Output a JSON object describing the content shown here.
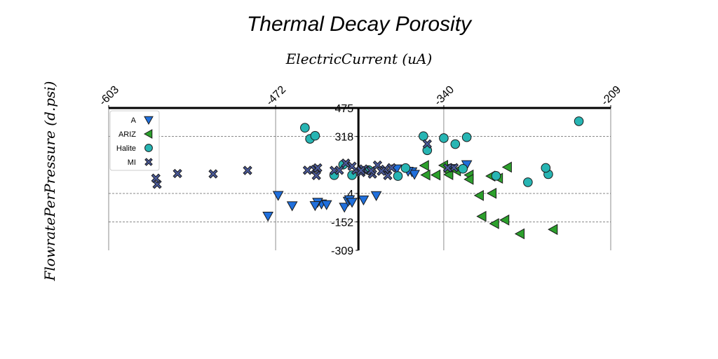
{
  "chart_data": {
    "type": "scatter",
    "title": "Thermal Decay Porosity",
    "xlabel": "ElectricCurrent (uA)",
    "ylabel": "FlowratePerPressure (d.psi)",
    "xlim": [
      -603,
      -209
    ],
    "ylim": [
      -309,
      475
    ],
    "x_ticks": [
      -603,
      -472,
      -340,
      -209
    ],
    "y_ticks": [
      475,
      318,
      4,
      -152,
      -309
    ],
    "legend_position": "top-left",
    "grid": true,
    "series": [
      {
        "name": "A",
        "marker": "triangle-down",
        "color": "#1f6fdc",
        "points": [
          [
            -470,
            -6
          ],
          [
            -418,
            -71
          ],
          [
            -436,
            -53
          ],
          [
            -439,
            -44
          ],
          [
            -441,
            -62
          ],
          [
            -459,
            -63
          ],
          [
            -478,
            -120
          ],
          [
            -432,
            -57
          ],
          [
            -415,
            -38
          ],
          [
            -414,
            -30
          ],
          [
            -412,
            -44
          ],
          [
            -403,
            -31
          ],
          [
            -335,
            142
          ],
          [
            -322,
            163
          ],
          [
            -393,
            -7
          ],
          [
            -365,
            124
          ],
          [
            -363,
            110
          ],
          [
            -368,
            127
          ],
          [
            -377,
            140
          ]
        ]
      },
      {
        "name": "ARIZ",
        "marker": "triangle-left",
        "color": "#2ca02c",
        "points": [
          [
            -354,
            106
          ],
          [
            -355,
            158
          ],
          [
            -340,
            159
          ],
          [
            -336,
            123
          ],
          [
            -320,
            106
          ],
          [
            -336,
            108
          ],
          [
            -303,
            100
          ],
          [
            -330,
            129
          ],
          [
            -346,
            106
          ],
          [
            -320,
            82
          ],
          [
            -290,
            149
          ],
          [
            -297,
            88
          ],
          [
            -302,
            5
          ],
          [
            -292,
            -142
          ],
          [
            -310,
            -122
          ],
          [
            -300,
            -162
          ],
          [
            -254,
            -194
          ],
          [
            -312,
            -7
          ],
          [
            -280,
            -218
          ]
        ]
      },
      {
        "name": "Halite",
        "marker": "circle",
        "color": "#27b5b3",
        "points": [
          [
            -419,
            163
          ],
          [
            -399,
            133
          ],
          [
            -376,
            100
          ],
          [
            -370,
            144
          ],
          [
            -353,
            242
          ],
          [
            -325,
            140
          ],
          [
            -258,
            110
          ],
          [
            -331,
            276
          ],
          [
            -340,
            309
          ],
          [
            -356,
            320
          ],
          [
            -322,
            314
          ],
          [
            -299,
            101
          ],
          [
            -234,
            402
          ],
          [
            -412,
            105
          ],
          [
            -426,
            105
          ],
          [
            -260,
            145
          ],
          [
            -274,
            66
          ],
          [
            -445,
            305
          ],
          [
            -441,
            322
          ],
          [
            -449,
            366
          ]
        ]
      },
      {
        "name": "MI",
        "marker": "x",
        "color": "#4a5a9a",
        "points": [
          [
            -565,
            55
          ],
          [
            -566,
            88
          ],
          [
            -521,
            112
          ],
          [
            -494,
            131
          ],
          [
            -549,
            114
          ],
          [
            -447,
            132
          ],
          [
            -426,
            131
          ],
          [
            -441,
            136
          ],
          [
            -439,
            145
          ],
          [
            -440,
            103
          ],
          [
            -422,
            132
          ],
          [
            -409,
            132
          ],
          [
            -384,
            103
          ],
          [
            -386,
            137
          ],
          [
            -396,
            111
          ],
          [
            -403,
            139
          ],
          [
            -417,
            171
          ],
          [
            -412,
            154
          ],
          [
            -405,
            120
          ],
          [
            -405,
            130
          ],
          [
            -397,
            129
          ],
          [
            -392,
            160
          ],
          [
            -389,
            127
          ],
          [
            -381,
            146
          ],
          [
            -353,
            277
          ],
          [
            -332,
            146
          ],
          [
            -337,
            145
          ]
        ]
      }
    ]
  }
}
